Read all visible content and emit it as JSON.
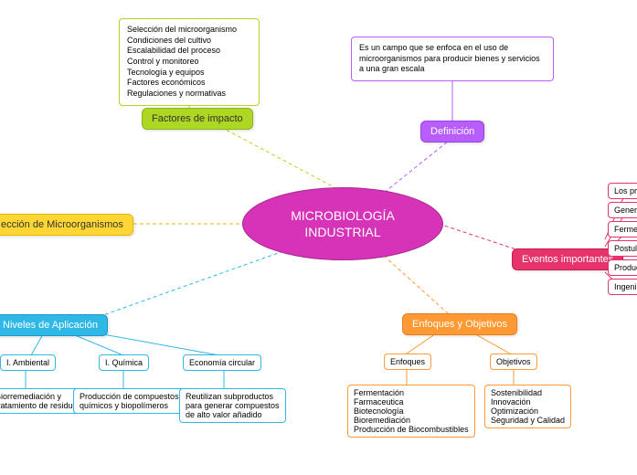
{
  "center": {
    "title": "MICROBIOLOGÍA\nINDUSTRIAL",
    "bg": "#d633b8",
    "border": "#a8268f"
  },
  "definicion": {
    "label": "Definición",
    "bg": "#b85eff",
    "border": "#9a3fe0",
    "text_color": "#ffffff",
    "box_text": "Es un campo que se enfoca en el uso de microorganismos para producir bienes y servicios a una gran escala",
    "box_border": "#b85eff",
    "connector": "#b85eff"
  },
  "factores": {
    "label": "Factores de impacto",
    "bg": "#aed724",
    "border": "#8fb31a",
    "text_color": "#333333",
    "box_text": "Selección del microorganismo\nCondiciones del cultivo\nEscalabilidad del proceso\nControl y monitoreo\nTecnología y equipos\nFactores económicos\nRegulaciones y normativas",
    "box_border": "#aed724",
    "connector": "#aed724"
  },
  "seleccion": {
    "label": "ección de Microorganismos",
    "bg": "#ffd633",
    "border": "#e6b800",
    "text_color": "#333333",
    "connector": "#e6b800"
  },
  "eventos": {
    "label": "Eventos importantes",
    "bg": "#e6336b",
    "border": "#c21f52",
    "text_color": "#ffffff",
    "connector": "#e6336b",
    "items": [
      "Los pri",
      "Genero",
      "Ferme",
      "Postul",
      "Produc",
      "Ingeni"
    ],
    "item_border": "#e6336b"
  },
  "niveles": {
    "label": "Niveles de Aplicación",
    "bg": "#2fb8e6",
    "border": "#1a99c7",
    "text_color": "#ffffff",
    "connector": "#2fb8e6",
    "items": [
      {
        "label": "I. Ambiental",
        "desc": "Biorremediación y\ntratamiento de residuos"
      },
      {
        "label": "I. Química",
        "desc": "Producción de compuestos\nquímicos y biopolímeros"
      },
      {
        "label": "Economía circular",
        "desc": "Reutilizan subproductos\npara generar compuestos\nde alto valor añadido"
      }
    ],
    "item_border": "#2fb8e6"
  },
  "enfoques": {
    "label": "Enfoques y Objetivos",
    "bg": "#ff9933",
    "border": "#e67f1a",
    "text_color": "#ffffff",
    "connector": "#ff9933",
    "groups": [
      {
        "label": "Enfoques",
        "desc": "Fermentación\nFarmaceutica\nBiotecnología\nBioremediación\nProducción de Biocombustibles"
      },
      {
        "label": "Objetivos",
        "desc": "Sostenibilidad\nInnovación\nOptimización\nSeguridad y Calidad"
      }
    ],
    "item_border": "#ff9933"
  }
}
